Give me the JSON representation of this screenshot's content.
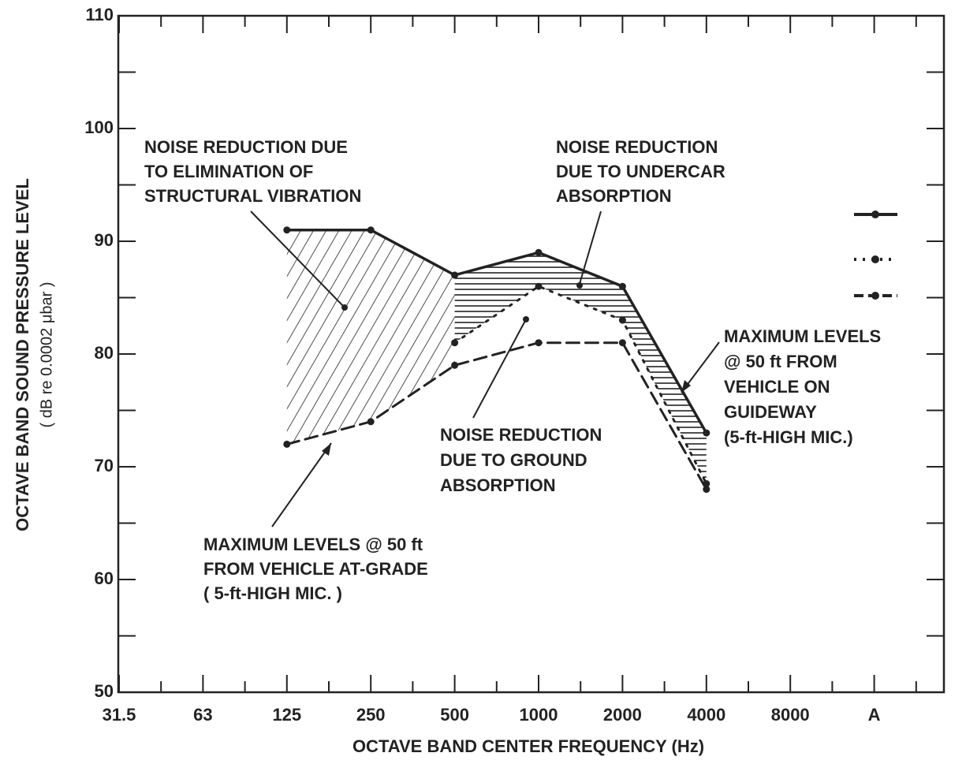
{
  "chart_data": {
    "type": "line",
    "x_label": "OCTAVE BAND CENTER FREQUENCY  (Hz)",
    "y_label": "OCTAVE BAND SOUND PRESSURE LEVEL",
    "y_label_units": "( dB re 0.0002 μbar )",
    "categories": [
      "31.5",
      "63",
      "125",
      "250",
      "500",
      "1000",
      "2000",
      "4000",
      "8000",
      "A"
    ],
    "series": [
      {
        "style": "solid",
        "color": "#222222",
        "values": [
          null,
          null,
          91,
          91,
          87,
          89,
          86,
          73,
          null,
          null
        ]
      },
      {
        "style": "dotted",
        "color": "#222222",
        "values": [
          null,
          null,
          null,
          null,
          81,
          86,
          83,
          68.5,
          null,
          null
        ]
      },
      {
        "style": "dashed",
        "color": "#222222",
        "values": [
          null,
          null,
          72,
          74,
          79,
          81,
          81,
          68,
          null,
          null
        ]
      }
    ],
    "ylim": [
      50,
      110
    ],
    "yticks": [
      50,
      60,
      70,
      80,
      90,
      100,
      110
    ],
    "annotations": [
      [
        "NOISE REDUCTION DUE",
        "TO ELIMINATION OF",
        "STRUCTURAL VIBRATION"
      ],
      [
        "NOISE REDUCTION",
        "DUE TO UNDERCAR",
        "ABSORPTION"
      ],
      [
        "MAXIMUM LEVELS",
        "@ 50 ft FROM",
        "VEHICLE ON",
        "GUIDEWAY",
        "(5-ft-HIGH MIC.)"
      ],
      [
        "NOISE REDUCTION",
        "DUE TO GROUND",
        "ABSORPTION"
      ],
      [
        "MAXIMUM LEVELS @ 50 ft",
        "FROM VEHICLE AT-GRADE",
        "( 5-ft-HIGH MIC. )"
      ]
    ]
  }
}
